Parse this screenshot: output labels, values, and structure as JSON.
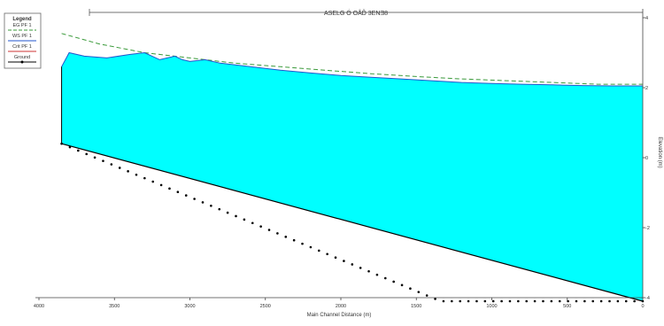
{
  "chart_data": {
    "type": "area",
    "title": "",
    "top_label": "ASELG Ó OÅĎ 3ENƎ8",
    "xlabel": "Main Channel Distance (m)",
    "ylabel": "Elevation (m)",
    "x_axis_reversed": true,
    "xlim": [
      4000,
      0
    ],
    "ylim": [
      -4,
      4
    ],
    "x_ticks": [
      4000,
      3500,
      3000,
      2500,
      2000,
      1500,
      1000,
      500,
      0
    ],
    "y_ticks": [
      -4,
      -2,
      0,
      2,
      4
    ],
    "grid": false,
    "legend_position": "top-left",
    "legend": {
      "title": "Legend",
      "items": [
        "EG PF 1",
        "WS PF 1",
        "Crit PF 1",
        "Ground"
      ]
    },
    "colors": {
      "water_fill": "#00ffff",
      "ws_line": "#2255cc",
      "eg_line": "#3a9a3a",
      "ground_line": "#000000",
      "axis": "#444444"
    },
    "series": [
      {
        "name": "EG PF 1",
        "x": [
          3850,
          3600,
          3300,
          3000,
          2700,
          2400,
          2100,
          1800,
          1500,
          1200,
          900,
          600,
          300,
          0
        ],
        "values": [
          3.55,
          3.25,
          3.0,
          2.85,
          2.7,
          2.6,
          2.5,
          2.4,
          2.32,
          2.25,
          2.2,
          2.15,
          2.1,
          2.1
        ]
      },
      {
        "name": "WS PF 1",
        "x": [
          3850,
          3800,
          3700,
          3550,
          3400,
          3300,
          3200,
          3100,
          3050,
          3000,
          2900,
          2800,
          2600,
          2400,
          2200,
          2000,
          1800,
          1600,
          1400,
          1200,
          1000,
          800,
          600,
          400,
          200,
          0
        ],
        "values": [
          2.6,
          3.0,
          2.9,
          2.85,
          2.95,
          3.0,
          2.8,
          2.9,
          2.8,
          2.75,
          2.8,
          2.7,
          2.6,
          2.5,
          2.42,
          2.35,
          2.3,
          2.25,
          2.2,
          2.15,
          2.12,
          2.1,
          2.08,
          2.06,
          2.05,
          2.05
        ]
      },
      {
        "name": "Ground",
        "x": [
          3850,
          0
        ],
        "values": [
          0.4,
          -6.5
        ]
      }
    ]
  }
}
